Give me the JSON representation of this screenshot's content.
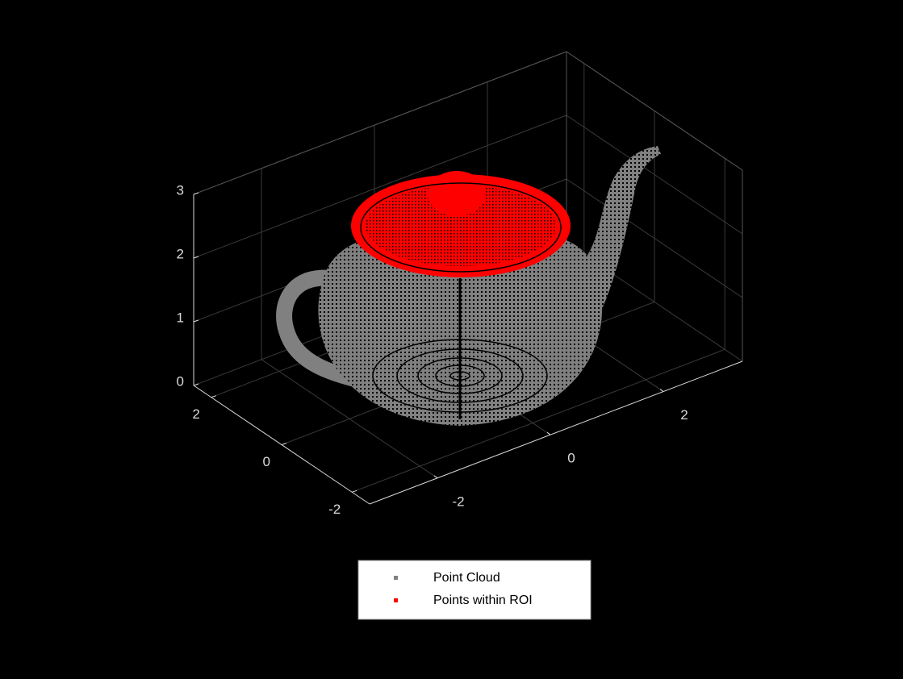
{
  "chart_data": {
    "type": "scatter3d",
    "series": [
      {
        "name": "Point Cloud",
        "color": "#808080"
      },
      {
        "name": "Points within ROI",
        "color": "#ff0000"
      }
    ],
    "xlim": [
      -3.2,
      3.4
    ],
    "xticks": [
      -2,
      0,
      2
    ],
    "ylim": [
      -2.5,
      2.5
    ],
    "yticks": [
      -2,
      0,
      2
    ],
    "zlim": [
      0,
      3
    ],
    "zticks": [
      0,
      1,
      2,
      3
    ],
    "grid": true,
    "legend": "south"
  }
}
